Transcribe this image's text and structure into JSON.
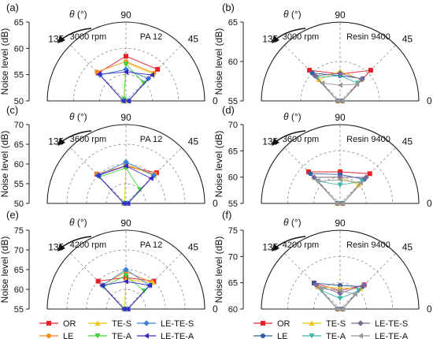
{
  "theta_symbol": "θ",
  "theta_unit": "(°)",
  "angle_labels": {
    "a135": "135",
    "a90": "90",
    "a45": "45",
    "a0": "0"
  },
  "legend": [
    {
      "name": "OR",
      "color": "#e8202a",
      "marker": "square"
    },
    {
      "name": "LE",
      "color": "#f58a1f",
      "marker": "circle"
    },
    {
      "name": "TE-S",
      "color": "#f2c418",
      "marker": "triangle-up"
    },
    {
      "name": "TE-A",
      "color": "#3fd13f",
      "marker": "triangle-down"
    },
    {
      "name": "LE-TE-S",
      "color": "#3a82d6",
      "marker": "diamond"
    },
    {
      "name": "LE-TE-A",
      "color": "#3a2bc8",
      "marker": "triangle-left"
    }
  ],
  "legend_right": [
    {
      "name": "OR",
      "color": "#e8202a",
      "marker": "square"
    },
    {
      "name": "LE",
      "color": "#2f5fa6",
      "marker": "circle"
    },
    {
      "name": "TE-S",
      "color": "#f2c418",
      "marker": "triangle-up"
    },
    {
      "name": "TE-A",
      "color": "#3fb8a8",
      "marker": "triangle-down"
    },
    {
      "name": "LE-TE-S",
      "color": "#7a6a9a",
      "marker": "diamond"
    },
    {
      "name": "LE-TE-A",
      "color": "#9a9a9a",
      "marker": "triangle-left"
    }
  ],
  "chart_data": [
    {
      "panel": "(a)",
      "type": "polar-line",
      "rpm": "3000 rpm",
      "material": "PA 12",
      "ylabel": "Noise level (dB)",
      "rlim": [
        50,
        65
      ],
      "rticks": [
        50,
        55,
        60,
        65
      ],
      "angles": [
        180,
        135,
        90,
        45,
        0
      ],
      "series": [
        {
          "name": "OR",
          "values": [
            50.5,
            57.5,
            58.5,
            58.5,
            50.5
          ]
        },
        {
          "name": "LE",
          "values": [
            50.5,
            57.8,
            57.5,
            57.5,
            50.5
          ]
        },
        {
          "name": "TE-S",
          "values": [
            50.5,
            50.5,
            57.3,
            57.3,
            50.5
          ]
        },
        {
          "name": "TE-A",
          "values": [
            50.5,
            50.5,
            57.0,
            54.8,
            50.5
          ]
        },
        {
          "name": "LE-TE-S",
          "values": [
            50.5,
            57.0,
            56.0,
            56.0,
            50.5
          ]
        },
        {
          "name": "LE-TE-A",
          "values": [
            50.5,
            57.2,
            55.5,
            57.0,
            50.5
          ]
        }
      ]
    },
    {
      "panel": "(b)",
      "type": "polar-line",
      "rpm": "3000 rpm",
      "material": "Resin 9400",
      "ylabel": "Noise level (dB)",
      "rlim": [
        55,
        65
      ],
      "rticks": [
        55,
        60,
        65
      ],
      "angles": [
        180,
        135,
        90,
        45,
        0
      ],
      "series": [
        {
          "name": "OR",
          "values": [
            55.3,
            60.5,
            58.4,
            60.5,
            55.3
          ]
        },
        {
          "name": "LE",
          "values": [
            55.3,
            60.0,
            58.2,
            59.0,
            55.3
          ]
        },
        {
          "name": "TE-S",
          "values": [
            55.3,
            58.8,
            58.8,
            58.8,
            55.3
          ]
        },
        {
          "name": "TE-A",
          "values": [
            55.3,
            59.2,
            58.2,
            58.2,
            55.3
          ]
        },
        {
          "name": "LE-TE-S",
          "values": [
            55.3,
            59.5,
            58.5,
            58.9,
            55.3
          ]
        },
        {
          "name": "LE-TE-A",
          "values": [
            55.3,
            58.2,
            57.0,
            58.0,
            55.3
          ]
        }
      ]
    },
    {
      "panel": "(c)",
      "type": "polar-line",
      "rpm": "3600 rpm",
      "material": "PA 12",
      "ylabel": "Noise level (dB)",
      "rlim": [
        50,
        70
      ],
      "rticks": [
        50,
        55,
        60,
        65,
        70
      ],
      "angles": [
        180,
        135,
        90,
        45,
        0
      ],
      "series": [
        {
          "name": "OR",
          "values": [
            50.5,
            60.5,
            59.5,
            61.0,
            50.5
          ]
        },
        {
          "name": "LE",
          "values": [
            50.5,
            60.5,
            59.5,
            60.5,
            50.5
          ]
        },
        {
          "name": "TE-S",
          "values": [
            50.5,
            50.5,
            60.0,
            60.0,
            50.5
          ]
        },
        {
          "name": "TE-A",
          "values": [
            50.5,
            59.5,
            59.0,
            55.0,
            50.5
          ]
        },
        {
          "name": "LE-TE-S",
          "values": [
            50.5,
            60.0,
            60.5,
            60.0,
            50.5
          ]
        },
        {
          "name": "LE-TE-A",
          "values": [
            50.5,
            60.0,
            59.5,
            59.0,
            50.5
          ]
        }
      ]
    },
    {
      "panel": "(d)",
      "type": "polar-line",
      "rpm": "3600 rpm",
      "material": "Resin 9400",
      "ylabel": "Noise level (dB)",
      "rlim": [
        55,
        70
      ],
      "rticks": [
        55,
        60,
        65,
        70
      ],
      "angles": [
        180,
        135,
        90,
        45,
        0
      ],
      "series": [
        {
          "name": "OR",
          "values": [
            55.5,
            63.5,
            61.0,
            63.0,
            55.5
          ]
        },
        {
          "name": "LE",
          "values": [
            55.5,
            63.0,
            60.5,
            61.5,
            55.5
          ]
        },
        {
          "name": "TE-S",
          "values": [
            55.5,
            62.0,
            60.0,
            60.0,
            55.5
          ]
        },
        {
          "name": "TE-A",
          "values": [
            55.5,
            61.0,
            58.5,
            61.0,
            55.5
          ]
        },
        {
          "name": "LE-TE-S",
          "values": [
            55.5,
            62.0,
            60.0,
            62.0,
            55.5
          ]
        },
        {
          "name": "LE-TE-A",
          "values": [
            55.5,
            61.0,
            59.5,
            60.5,
            55.5
          ]
        }
      ]
    },
    {
      "panel": "(e)",
      "type": "polar-line",
      "rpm": "4200 rpm",
      "material": "PA 12",
      "ylabel": "Noise level (dB)",
      "rlim": [
        55,
        75
      ],
      "rticks": [
        55,
        60,
        65,
        70,
        75
      ],
      "angles": [
        180,
        135,
        90,
        45,
        0
      ],
      "series": [
        {
          "name": "OR",
          "values": [
            55.5,
            65.0,
            63.0,
            65.0,
            55.5
          ]
        },
        {
          "name": "LE",
          "values": [
            55.5,
            63.5,
            64.5,
            64.5,
            55.5
          ]
        },
        {
          "name": "TE-S",
          "values": [
            55.5,
            55.5,
            62.5,
            64.5,
            55.5
          ]
        },
        {
          "name": "TE-A",
          "values": [
            55.5,
            63.0,
            63.5,
            61.5,
            55.5
          ]
        },
        {
          "name": "LE-TE-S",
          "values": [
            55.5,
            63.5,
            65.0,
            63.5,
            55.5
          ]
        },
        {
          "name": "LE-TE-A",
          "values": [
            55.5,
            63.5,
            62.0,
            63.5,
            55.5
          ]
        }
      ]
    },
    {
      "panel": "(f)",
      "type": "polar-line",
      "rpm": "4200 rpm",
      "material": "Resin 9400",
      "ylabel": "Noise level (dB)",
      "rlim": [
        60,
        75
      ],
      "rticks": [
        60,
        65,
        70,
        75
      ],
      "angles": [
        180,
        135,
        90,
        45,
        0
      ],
      "series": [
        {
          "name": "OR",
          "values": [
            60.5,
            67.0,
            63.5,
            66.5,
            60.5
          ]
        },
        {
          "name": "LE",
          "values": [
            60.5,
            67.0,
            64.5,
            66.0,
            60.5
          ]
        },
        {
          "name": "TE-S",
          "values": [
            60.5,
            66.0,
            64.0,
            65.5,
            60.5
          ]
        },
        {
          "name": "TE-A",
          "values": [
            60.5,
            65.0,
            62.0,
            65.0,
            60.5
          ]
        },
        {
          "name": "LE-TE-S",
          "values": [
            60.5,
            66.5,
            63.0,
            66.5,
            60.5
          ]
        },
        {
          "name": "LE-TE-A",
          "values": [
            60.5,
            65.5,
            63.5,
            64.0,
            60.5
          ]
        }
      ]
    }
  ]
}
